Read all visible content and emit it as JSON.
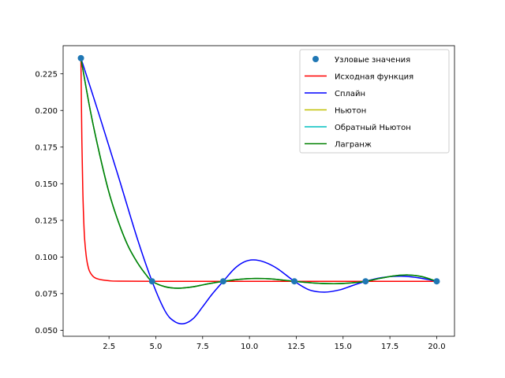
{
  "chart_data": {
    "type": "line",
    "title": "",
    "xlabel": "",
    "ylabel": "",
    "xlim": [
      0.05,
      20.95
    ],
    "ylim": [
      0.0459,
      0.2442
    ],
    "grid": false,
    "legend_position": "top-right",
    "x_ticks": [
      2.5,
      5.0,
      7.5,
      10.0,
      12.5,
      15.0,
      17.5,
      20.0
    ],
    "x_tick_labels": [
      "2.5",
      "5.0",
      "7.5",
      "10.0",
      "12.5",
      "15.0",
      "17.5",
      "20.0"
    ],
    "y_ticks": [
      0.05,
      0.075,
      0.1,
      0.125,
      0.15,
      0.175,
      0.2,
      0.225
    ],
    "y_tick_labels": [
      "0.050",
      "0.075",
      "0.100",
      "0.125",
      "0.150",
      "0.175",
      "0.200",
      "0.225"
    ],
    "nodes": {
      "name": "Узловые значения",
      "color": "#1f77b4",
      "x": [
        1.0,
        4.8,
        8.6,
        12.4,
        16.2,
        20.0
      ],
      "y": [
        0.2357,
        0.0834,
        0.0834,
        0.0834,
        0.0834,
        0.0834
      ]
    },
    "series": [
      {
        "name": "Исходная функция",
        "color": "#ff0000",
        "x": [
          1.0,
          1.05,
          1.1,
          1.15,
          1.2,
          1.3,
          1.4,
          1.5,
          1.7,
          2.0,
          2.5,
          3.0,
          5.0,
          10.0,
          15.0,
          20.0
        ],
        "y": [
          0.2357,
          0.18,
          0.146,
          0.125,
          0.112,
          0.099,
          0.0925,
          0.0893,
          0.0862,
          0.0847,
          0.0838,
          0.0835,
          0.0834,
          0.0834,
          0.0834,
          0.0834
        ]
      },
      {
        "name": "Сплайн",
        "color": "#0000ff",
        "x": [
          1.0,
          2.0,
          3.0,
          4.0,
          4.8,
          5.5,
          6.0,
          6.5,
          7.0,
          7.5,
          8.0,
          8.6,
          9.2,
          9.7,
          10.2,
          10.8,
          11.5,
          12.4,
          13.2,
          14.0,
          14.8,
          15.5,
          16.2,
          17.0,
          17.8,
          18.5,
          19.3,
          20.0
        ],
        "y": [
          0.2357,
          0.196,
          0.155,
          0.113,
          0.0834,
          0.063,
          0.056,
          0.0545,
          0.058,
          0.066,
          0.0745,
          0.0834,
          0.092,
          0.0965,
          0.098,
          0.0965,
          0.092,
          0.0834,
          0.0775,
          0.076,
          0.0775,
          0.0805,
          0.0834,
          0.0858,
          0.0868,
          0.0866,
          0.0852,
          0.0834
        ]
      },
      {
        "name": "Ньютон",
        "color": "#bfbf00",
        "x": [
          1.0,
          1.5,
          2.0,
          2.5,
          3.0,
          3.5,
          4.0,
          4.5,
          4.8,
          5.5,
          6.2,
          7.0,
          7.8,
          8.6,
          9.5,
          10.3,
          11.2,
          12.4,
          13.5,
          14.5,
          15.3,
          16.2,
          17.0,
          17.8,
          18.5,
          19.2,
          20.0
        ],
        "y": [
          0.2357,
          0.2,
          0.17,
          0.144,
          0.124,
          0.108,
          0.0965,
          0.0875,
          0.0834,
          0.0797,
          0.0787,
          0.0797,
          0.0817,
          0.0834,
          0.0848,
          0.0853,
          0.085,
          0.0834,
          0.0822,
          0.0818,
          0.0822,
          0.0834,
          0.0855,
          0.0872,
          0.0877,
          0.0866,
          0.0834
        ]
      },
      {
        "name": "Обратный Ньютон",
        "color": "#00bfbf",
        "x": [
          1.0,
          1.5,
          2.0,
          2.5,
          3.0,
          3.5,
          4.0,
          4.5,
          4.8,
          5.5,
          6.2,
          7.0,
          7.8,
          8.6,
          9.5,
          10.3,
          11.2,
          12.4,
          13.5,
          14.5,
          15.3,
          16.2,
          17.0,
          17.8,
          18.5,
          19.2,
          20.0
        ],
        "y": [
          0.2357,
          0.2,
          0.17,
          0.144,
          0.124,
          0.108,
          0.0965,
          0.0875,
          0.0834,
          0.0797,
          0.0787,
          0.0797,
          0.0817,
          0.0834,
          0.0848,
          0.0853,
          0.085,
          0.0834,
          0.0822,
          0.0818,
          0.0822,
          0.0834,
          0.0855,
          0.0872,
          0.0877,
          0.0866,
          0.0834
        ]
      },
      {
        "name": "Лагранж",
        "color": "#008000",
        "x": [
          1.0,
          1.5,
          2.0,
          2.5,
          3.0,
          3.5,
          4.0,
          4.5,
          4.8,
          5.5,
          6.2,
          7.0,
          7.8,
          8.6,
          9.5,
          10.3,
          11.2,
          12.4,
          13.5,
          14.5,
          15.3,
          16.2,
          17.0,
          17.8,
          18.5,
          19.2,
          20.0
        ],
        "y": [
          0.2357,
          0.2,
          0.17,
          0.144,
          0.124,
          0.108,
          0.0965,
          0.0875,
          0.0834,
          0.0797,
          0.0787,
          0.0797,
          0.0817,
          0.0834,
          0.0848,
          0.0853,
          0.085,
          0.0834,
          0.0822,
          0.0818,
          0.0822,
          0.0834,
          0.0855,
          0.0872,
          0.0877,
          0.0866,
          0.0834
        ]
      }
    ]
  }
}
